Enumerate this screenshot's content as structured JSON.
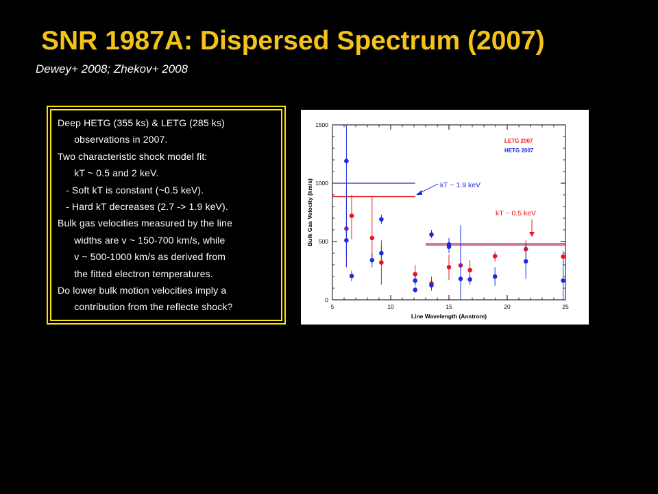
{
  "slide": {
    "title": "SNR 1987A: Dispersed Spectrum (2007)",
    "subtitle": "Dewey+ 2008; Zhekov+ 2008",
    "bullets": [
      "Deep HETG (355 ks) & LETG (285 ks)",
      "      observations in 2007.",
      "Two characteristic shock model fit:",
      "      kT ~ 0.5 and 2 keV.",
      "   - Soft kT is constant (~0.5 keV).",
      "   - Hard kT decreases (2.7 -> 1.9 keV).",
      "Bulk gas velocities measured by the line",
      "      widths are v ~ 150-700 km/s, while",
      "      v ~ 500-1000 km/s as derived from",
      "      the fitted electron temperatures.",
      "Do lower bulk motion velocities imply a",
      "      contribution from the reflecte shock?"
    ]
  },
  "chart_data": {
    "type": "scatter",
    "xlabel": "Line Wavelength (Anstrom)",
    "ylabel": "Bulk Gas Velocity (km/s)",
    "xlim": [
      5,
      25
    ],
    "ylim": [
      0,
      1500
    ],
    "x_ticks": [
      5,
      10,
      15,
      20,
      25
    ],
    "x_tick_labels": [
      "5",
      "10",
      "15",
      "20",
      "25"
    ],
    "y_ticks": [
      0,
      500,
      1000,
      1500
    ],
    "y_tick_labels": [
      "0",
      "500",
      "1000",
      "1500"
    ],
    "legend": {
      "placement": "top-right",
      "entries": [
        "LETG 2007",
        "HETG 2007"
      ]
    },
    "colors": {
      "LETG 2007": "#e8161d",
      "HETG 2007": "#1b2be0"
    },
    "series": [
      {
        "name": "LETG 2007",
        "points": [
          {
            "x": 6.2,
            "y": 610,
            "lo": 280,
            "hi": 950
          },
          {
            "x": 6.65,
            "y": 720,
            "lo": 520,
            "hi": 900
          },
          {
            "x": 8.4,
            "y": 530,
            "lo": 330,
            "hi": 880
          },
          {
            "x": 9.2,
            "y": 320,
            "lo": 130,
            "hi": 510
          },
          {
            "x": 12.1,
            "y": 220,
            "lo": 140,
            "hi": 300
          },
          {
            "x": 13.5,
            "y": 140,
            "lo": 80,
            "hi": 200
          },
          {
            "x": 15.0,
            "y": 280,
            "lo": 170,
            "hi": 390
          },
          {
            "x": 16.0,
            "y": 295,
            "lo": 200,
            "hi": 390
          },
          {
            "x": 16.8,
            "y": 255,
            "lo": 170,
            "hi": 340
          },
          {
            "x": 18.95,
            "y": 375,
            "lo": 330,
            "hi": 415
          },
          {
            "x": 21.6,
            "y": 435,
            "lo": 360,
            "hi": 510
          },
          {
            "x": 24.8,
            "y": 370,
            "lo": 310,
            "hi": 420
          }
        ]
      },
      {
        "name": "HETG 2007",
        "points": [
          {
            "x": 6.2,
            "y": 1190,
            "lo": 400,
            "hi": 1500
          },
          {
            "x": 6.2,
            "y": 510,
            "lo": 280,
            "hi": 640
          },
          {
            "x": 6.65,
            "y": 205,
            "lo": 160,
            "hi": 250
          },
          {
            "x": 8.4,
            "y": 340,
            "lo": 280,
            "hi": 400
          },
          {
            "x": 9.2,
            "y": 690,
            "lo": 650,
            "hi": 730
          },
          {
            "x": 9.2,
            "y": 400,
            "lo": 340,
            "hi": 460
          },
          {
            "x": 12.1,
            "y": 165,
            "lo": 120,
            "hi": 210
          },
          {
            "x": 12.1,
            "y": 85,
            "lo": 60,
            "hi": 110
          },
          {
            "x": 13.5,
            "y": 125,
            "lo": 80,
            "hi": 170
          },
          {
            "x": 13.5,
            "y": 560,
            "lo": 530,
            "hi": 600
          },
          {
            "x": 15.0,
            "y": 475,
            "lo": 420,
            "hi": 530
          },
          {
            "x": 15.0,
            "y": 455,
            "lo": 400,
            "hi": 510
          },
          {
            "x": 16.0,
            "y": 180,
            "lo": 0,
            "hi": 640
          },
          {
            "x": 16.8,
            "y": 175,
            "lo": 130,
            "hi": 220
          },
          {
            "x": 18.95,
            "y": 200,
            "lo": 120,
            "hi": 280
          },
          {
            "x": 21.6,
            "y": 330,
            "lo": 180,
            "hi": 480
          },
          {
            "x": 24.8,
            "y": 165,
            "lo": 0,
            "hi": 340
          }
        ]
      }
    ],
    "model_lines": [
      {
        "series": "HETG 2007",
        "y": 1000,
        "x_start": 5,
        "x_end": 12.1
      },
      {
        "series": "LETG 2007",
        "y": 885,
        "x_start": 5,
        "x_end": 12.1
      },
      {
        "series": "HETG 2007",
        "y": 480,
        "x_start": 13.0,
        "x_end": 25.0
      },
      {
        "series": "LETG 2007",
        "y": 470,
        "x_start": 13.0,
        "x_end": 25.0
      }
    ],
    "annotations": [
      {
        "text": "kT ~ 1.9 keV",
        "color": "#1b2be0"
      },
      {
        "text": "kT ~ 0.5 keV",
        "color": "#e8161d"
      }
    ]
  }
}
